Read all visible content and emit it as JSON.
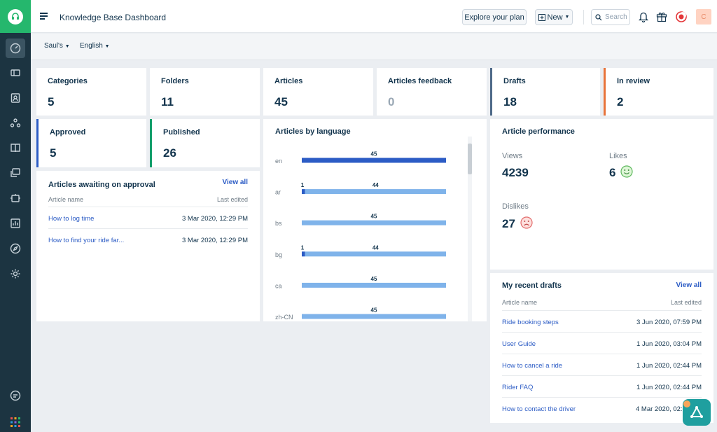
{
  "header": {
    "title": "Knowledge Base Dashboard",
    "explore_label": "Explore your plan",
    "new_label": "New",
    "search_placeholder": "Search",
    "avatar_initial": "C"
  },
  "subbar": {
    "portal": "Saul's",
    "language": "English"
  },
  "stats": [
    {
      "label": "Categories",
      "value": "5"
    },
    {
      "label": "Folders",
      "value": "11"
    },
    {
      "label": "Articles",
      "value": "45"
    },
    {
      "label": "Articles feedback",
      "value": "0"
    },
    {
      "label": "Drafts",
      "value": "18"
    },
    {
      "label": "In review",
      "value": "2"
    },
    {
      "label": "Approved",
      "value": "5"
    },
    {
      "label": "Published",
      "value": "26"
    }
  ],
  "awaiting": {
    "title": "Articles awaiting on approval",
    "view_all": "View all",
    "col_name": "Article name",
    "col_date": "Last edited",
    "rows": [
      {
        "name": "How to log time",
        "date": "3 Mar 2020, 12:29 PM"
      },
      {
        "name": "How to find your ride far...",
        "date": "3 Mar 2020, 12:29 PM"
      }
    ]
  },
  "chart_data": {
    "type": "bar",
    "title": "Articles by language",
    "categories": [
      "en",
      "ar",
      "bs",
      "bg",
      "ca",
      "zh-CN"
    ],
    "series": [
      {
        "values": [
          45,
          1,
          0,
          1,
          0,
          0
        ]
      },
      {
        "values": [
          0,
          44,
          45,
          44,
          45,
          45
        ]
      }
    ],
    "colors": [
      "#2c5cc5",
      "#7fb3ea"
    ],
    "xlim": [
      0,
      45
    ]
  },
  "performance": {
    "title": "Article performance",
    "views_label": "Views",
    "views": "4239",
    "likes_label": "Likes",
    "likes": "6",
    "dislikes_label": "Dislikes",
    "dislikes": "27"
  },
  "drafts": {
    "title": "My recent drafts",
    "view_all": "View all",
    "col_name": "Article name",
    "col_date": "Last edited",
    "rows": [
      {
        "name": "Ride booking steps",
        "date": "3 Jun 2020, 07:59 PM"
      },
      {
        "name": "User Guide",
        "date": "1 Jun 2020, 03:04 PM"
      },
      {
        "name": "How to cancel a ride",
        "date": "1 Jun 2020, 02:44 PM"
      },
      {
        "name": "Rider FAQ",
        "date": "1 Jun 2020, 02:44 PM"
      },
      {
        "name": "How to contact the driver",
        "date": "4 Mar 2020, 02:35 PM"
      }
    ]
  },
  "colors": {
    "sidebar": "#1c3441",
    "brand": "#25b76d",
    "link": "#2c5cc5"
  }
}
